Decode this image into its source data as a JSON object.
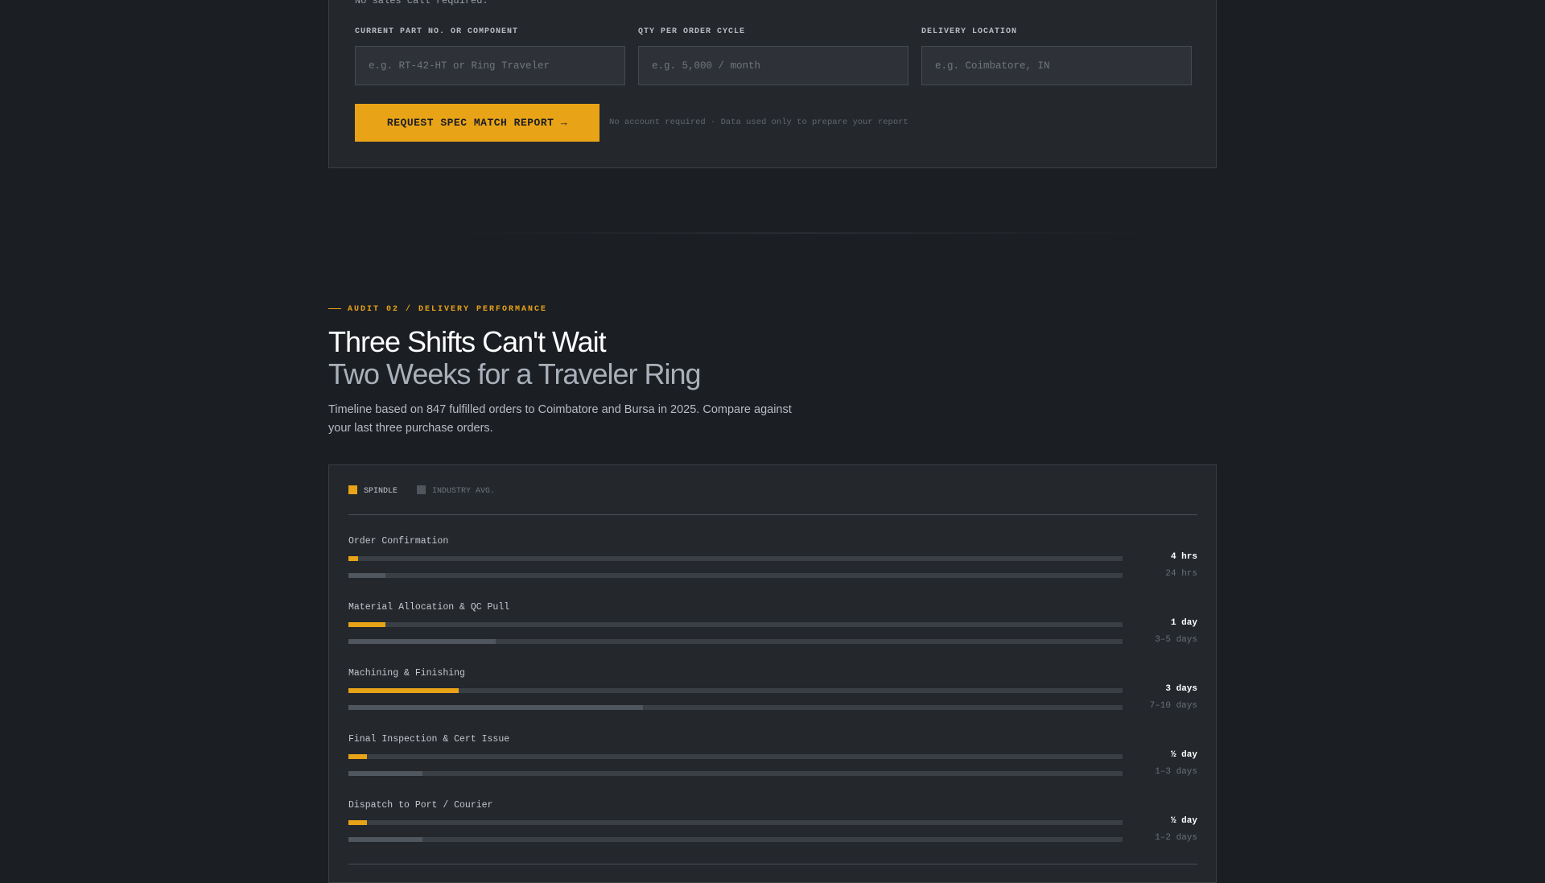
{
  "form": {
    "note": "No sales call required.",
    "fields": [
      {
        "label": "CURRENT PART NO. OR COMPONENT",
        "placeholder": "e.g. RT-42-HT or Ring Traveler"
      },
      {
        "label": "QTY PER ORDER CYCLE",
        "placeholder": "e.g. 5,000 / month"
      },
      {
        "label": "DELIVERY LOCATION",
        "placeholder": "e.g. Coimbatore, IN"
      }
    ],
    "submit_label": "REQUEST SPEC MATCH REPORT →",
    "submit_note": "No account required · Data used only to prepare your report"
  },
  "section": {
    "eyebrow": "AUDIT 02 / DELIVERY PERFORMANCE",
    "title": "Three Shifts Can't Wait",
    "subtitle": "Two Weeks for a Traveler Ring",
    "description": "Timeline based on 847 fulfilled orders to Coimbatore and Bursa in 2025. Compare against your last three purchase orders."
  },
  "colors": {
    "accent": "#e8a317",
    "industry": "#50565e",
    "track": "#3a3f45"
  },
  "chart_data": {
    "type": "bar",
    "legend": [
      "SPINDLE",
      "INDUSTRY AVG."
    ],
    "legend_placement": "top-left",
    "scale_max_days": 21,
    "rows": [
      {
        "label": "Order Confirmation",
        "spindle": "4 hrs",
        "spindle_days": 0.17,
        "industry": "24 hrs",
        "industry_days": 1
      },
      {
        "label": "Material Allocation & QC Pull",
        "spindle": "1 day",
        "spindle_days": 1,
        "industry": "3–5 days",
        "industry_days": 4
      },
      {
        "label": "Machining & Finishing",
        "spindle": "3 days",
        "spindle_days": 3,
        "industry": "7–10 days",
        "industry_days": 8
      },
      {
        "label": "Final Inspection & Cert Issue",
        "spindle": "½ day",
        "spindle_days": 0.5,
        "industry": "1–3 days",
        "industry_days": 2
      },
      {
        "label": "Dispatch to Port / Courier",
        "spindle": "½ day",
        "spindle_days": 0.5,
        "industry": "1–2 days",
        "industry_days": 2
      }
    ]
  }
}
